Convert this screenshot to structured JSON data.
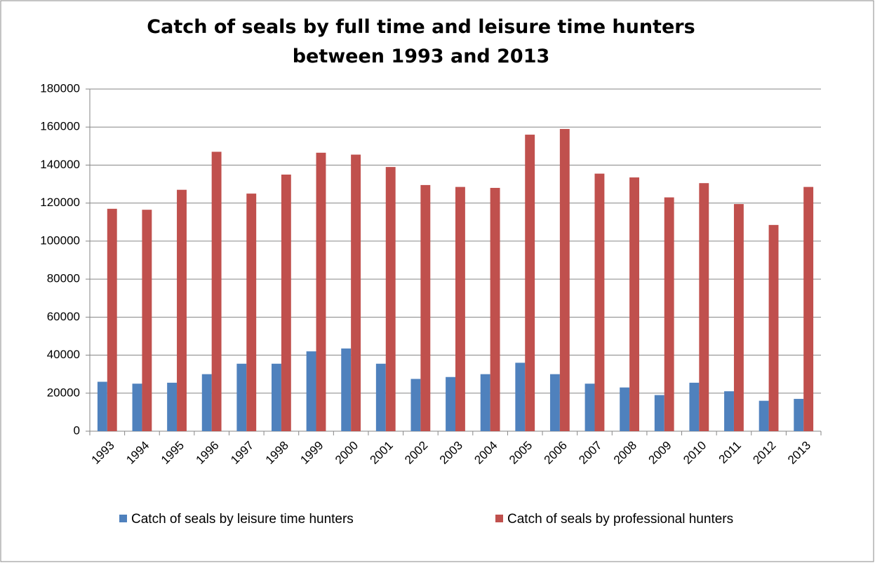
{
  "chart_data": {
    "type": "bar",
    "title": "Catch of seals by full time and leisure time hunters between 1993 and 2013",
    "categories": [
      "1993",
      "1994",
      "1995",
      "1996",
      "1997",
      "1998",
      "1999",
      "2000",
      "2001",
      "2002",
      "2003",
      "2004",
      "2005",
      "2006",
      "2007",
      "2008",
      "2009",
      "2010",
      "2011",
      "2012",
      "2013"
    ],
    "series": [
      {
        "name": "Catch of seals by leisure time hunters",
        "color": "#4f81bd",
        "values": [
          26000,
          25000,
          25500,
          30000,
          35500,
          35500,
          42000,
          43500,
          35500,
          27500,
          28500,
          30000,
          36000,
          30000,
          25000,
          23000,
          19000,
          25500,
          21000,
          16000,
          17000
        ]
      },
      {
        "name": "Catch of seals by professional hunters",
        "color": "#c0504d",
        "values": [
          117000,
          116500,
          127000,
          147000,
          125000,
          135000,
          146500,
          145500,
          139000,
          129500,
          128500,
          128000,
          156000,
          159000,
          135500,
          133500,
          123000,
          130500,
          119500,
          108500,
          128500
        ]
      }
    ],
    "ylim": [
      0,
      180000
    ],
    "yticks": [
      0,
      20000,
      40000,
      60000,
      80000,
      100000,
      120000,
      140000,
      160000,
      180000
    ],
    "grid": true,
    "legend": "bottom"
  }
}
